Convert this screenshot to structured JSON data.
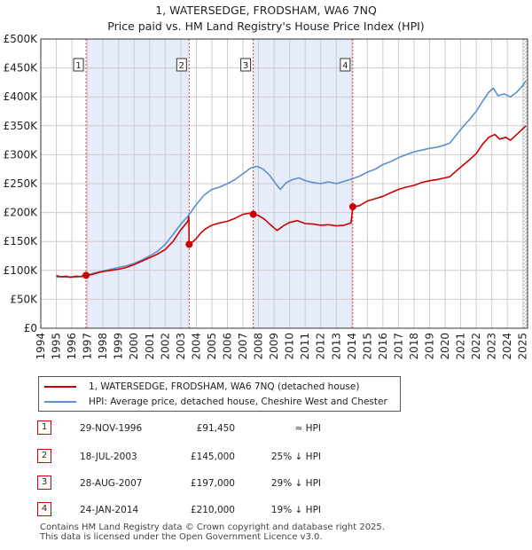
{
  "title": "1, WATERSEDGE, FRODSHAM, WA6 7NQ",
  "subtitle": "Price paid vs. HM Land Registry's House Price Index (HPI)",
  "colors": {
    "property": "#cc0000",
    "hpi": "#5b8fd0",
    "shade": "#dde6f7",
    "marker": "#cc0000"
  },
  "legend": {
    "property_label": "1, WATERSEDGE, FRODSHAM, WA6 7NQ (detached house)",
    "hpi_label": "HPI: Average price, detached house, Cheshire West and Chester"
  },
  "sales": [
    {
      "num": "1",
      "date": "29-NOV-1996",
      "price": "£91,450",
      "hpi": "≈ HPI"
    },
    {
      "num": "2",
      "date": "18-JUL-2003",
      "price": "£145,000",
      "hpi": "25% ↓ HPI"
    },
    {
      "num": "3",
      "date": "28-AUG-2007",
      "price": "£197,000",
      "hpi": "29% ↓ HPI"
    },
    {
      "num": "4",
      "date": "24-JAN-2014",
      "price": "£210,000",
      "hpi": "19% ↓ HPI"
    }
  ],
  "footer": {
    "line1": "Contains HM Land Registry data © Crown copyright and database right 2025.",
    "line2": "This data is licensed under the Open Government Licence v3.0."
  },
  "chart_data": {
    "type": "line",
    "title": "1, WATERSEDGE, FRODSHAM, WA6 7NQ",
    "subtitle": "Price paid vs. HM Land Registry's House Price Index (HPI)",
    "xlim": [
      1994,
      2025.3
    ],
    "ylim": [
      0,
      500000
    ],
    "grid": true,
    "legend_position": "below",
    "y_ticks": [
      {
        "v": 0,
        "label": "£0"
      },
      {
        "v": 50000,
        "label": "£50K"
      },
      {
        "v": 100000,
        "label": "£100K"
      },
      {
        "v": 150000,
        "label": "£150K"
      },
      {
        "v": 200000,
        "label": "£200K"
      },
      {
        "v": 250000,
        "label": "£250K"
      },
      {
        "v": 300000,
        "label": "£300K"
      },
      {
        "v": 350000,
        "label": "£350K"
      },
      {
        "v": 400000,
        "label": "£400K"
      },
      {
        "v": 450000,
        "label": "£450K"
      },
      {
        "v": 500000,
        "label": "£500K"
      }
    ],
    "x_ticks": [
      "1994",
      "1995",
      "1996",
      "1997",
      "1998",
      "1999",
      "2000",
      "2001",
      "2002",
      "2003",
      "2004",
      "2005",
      "2006",
      "2007",
      "2008",
      "2009",
      "2010",
      "2011",
      "2012",
      "2013",
      "2014",
      "2015",
      "2016",
      "2017",
      "2018",
      "2019",
      "2020",
      "2021",
      "2022",
      "2023",
      "2024",
      "2025"
    ],
    "shaded_ranges": [
      [
        1996.91,
        2003.54
      ],
      [
        2007.66,
        2014.06
      ]
    ],
    "sale_markers": [
      {
        "label": "1",
        "x": 1996.91,
        "y": 91450
      },
      {
        "label": "2",
        "x": 2003.54,
        "y": 145000
      },
      {
        "label": "3",
        "x": 2007.66,
        "y": 197000
      },
      {
        "label": "4",
        "x": 2014.06,
        "y": 210000
      }
    ],
    "series": [
      {
        "name": "1, WATERSEDGE, FRODSHAM, WA6 7NQ (detached house)",
        "color": "#cc0000",
        "points": [
          [
            1995.0,
            91000
          ],
          [
            1995.3,
            89000
          ],
          [
            1995.6,
            90000
          ],
          [
            1995.9,
            88000
          ],
          [
            1996.3,
            90000
          ],
          [
            1996.6,
            89000
          ],
          [
            1996.91,
            91450
          ],
          [
            1997.3,
            93000
          ],
          [
            1997.7,
            96000
          ],
          [
            1998.0,
            98000
          ],
          [
            1998.5,
            100000
          ],
          [
            1999.0,
            102000
          ],
          [
            1999.5,
            105000
          ],
          [
            2000.0,
            110000
          ],
          [
            2000.5,
            116000
          ],
          [
            2001.0,
            122000
          ],
          [
            2001.5,
            128000
          ],
          [
            2002.0,
            136000
          ],
          [
            2002.5,
            150000
          ],
          [
            2003.0,
            170000
          ],
          [
            2003.45,
            185000
          ],
          [
            2003.52,
            193000
          ],
          [
            2003.54,
            145000
          ],
          [
            2003.8,
            150000
          ],
          [
            2004.0,
            155000
          ],
          [
            2004.3,
            165000
          ],
          [
            2004.6,
            172000
          ],
          [
            2005.0,
            178000
          ],
          [
            2005.5,
            182000
          ],
          [
            2006.0,
            185000
          ],
          [
            2006.5,
            190000
          ],
          [
            2007.0,
            197000
          ],
          [
            2007.4,
            199000
          ],
          [
            2007.66,
            197000
          ],
          [
            2008.0,
            195000
          ],
          [
            2008.4,
            188000
          ],
          [
            2008.8,
            178000
          ],
          [
            2009.2,
            169000
          ],
          [
            2009.6,
            177000
          ],
          [
            2010.0,
            183000
          ],
          [
            2010.5,
            186000
          ],
          [
            2011.0,
            181000
          ],
          [
            2011.5,
            180000
          ],
          [
            2012.0,
            178000
          ],
          [
            2012.5,
            179000
          ],
          [
            2013.0,
            177000
          ],
          [
            2013.5,
            178000
          ],
          [
            2013.95,
            182000
          ],
          [
            2014.06,
            210000
          ],
          [
            2014.5,
            212000
          ],
          [
            2015.0,
            220000
          ],
          [
            2015.5,
            224000
          ],
          [
            2016.0,
            228000
          ],
          [
            2016.5,
            234000
          ],
          [
            2017.0,
            240000
          ],
          [
            2017.5,
            244000
          ],
          [
            2018.0,
            247000
          ],
          [
            2018.5,
            252000
          ],
          [
            2019.0,
            255000
          ],
          [
            2019.5,
            257000
          ],
          [
            2020.0,
            260000
          ],
          [
            2020.3,
            262000
          ],
          [
            2020.8,
            274000
          ],
          [
            2021.2,
            283000
          ],
          [
            2021.6,
            292000
          ],
          [
            2022.0,
            302000
          ],
          [
            2022.4,
            318000
          ],
          [
            2022.8,
            330000
          ],
          [
            2023.2,
            335000
          ],
          [
            2023.5,
            327000
          ],
          [
            2023.9,
            330000
          ],
          [
            2024.2,
            325000
          ],
          [
            2024.6,
            335000
          ],
          [
            2025.0,
            345000
          ],
          [
            2025.2,
            350000
          ]
        ]
      },
      {
        "name": "HPI: Average price, detached house, Cheshire West and Chester",
        "color": "#5b8fd0",
        "points": [
          [
            1995.0,
            88000
          ],
          [
            1995.3,
            89000
          ],
          [
            1995.6,
            88000
          ],
          [
            1995.9,
            89000
          ],
          [
            1996.3,
            88000
          ],
          [
            1996.6,
            90000
          ],
          [
            1997.0,
            92000
          ],
          [
            1997.5,
            96000
          ],
          [
            1998.0,
            99000
          ],
          [
            1998.5,
            102000
          ],
          [
            1999.0,
            105000
          ],
          [
            1999.5,
            108000
          ],
          [
            2000.0,
            112000
          ],
          [
            2000.5,
            118000
          ],
          [
            2001.0,
            125000
          ],
          [
            2001.5,
            133000
          ],
          [
            2002.0,
            145000
          ],
          [
            2002.5,
            162000
          ],
          [
            2003.0,
            180000
          ],
          [
            2003.5,
            195000
          ],
          [
            2004.0,
            214000
          ],
          [
            2004.5,
            230000
          ],
          [
            2005.0,
            240000
          ],
          [
            2005.5,
            244000
          ],
          [
            2006.0,
            250000
          ],
          [
            2006.5,
            257000
          ],
          [
            2007.0,
            267000
          ],
          [
            2007.5,
            277000
          ],
          [
            2007.9,
            280000
          ],
          [
            2008.3,
            275000
          ],
          [
            2008.7,
            265000
          ],
          [
            2009.1,
            250000
          ],
          [
            2009.4,
            240000
          ],
          [
            2009.8,
            252000
          ],
          [
            2010.2,
            257000
          ],
          [
            2010.6,
            260000
          ],
          [
            2011.0,
            255000
          ],
          [
            2011.5,
            252000
          ],
          [
            2012.0,
            250000
          ],
          [
            2012.5,
            253000
          ],
          [
            2013.0,
            250000
          ],
          [
            2013.5,
            254000
          ],
          [
            2014.0,
            258000
          ],
          [
            2014.5,
            263000
          ],
          [
            2015.0,
            270000
          ],
          [
            2015.5,
            275000
          ],
          [
            2016.0,
            283000
          ],
          [
            2016.5,
            288000
          ],
          [
            2017.0,
            295000
          ],
          [
            2017.5,
            300000
          ],
          [
            2018.0,
            305000
          ],
          [
            2018.5,
            308000
          ],
          [
            2019.0,
            311000
          ],
          [
            2019.5,
            313000
          ],
          [
            2020.0,
            317000
          ],
          [
            2020.3,
            320000
          ],
          [
            2020.8,
            337000
          ],
          [
            2021.2,
            350000
          ],
          [
            2021.6,
            362000
          ],
          [
            2022.0,
            375000
          ],
          [
            2022.4,
            392000
          ],
          [
            2022.8,
            408000
          ],
          [
            2023.1,
            415000
          ],
          [
            2023.4,
            402000
          ],
          [
            2023.8,
            405000
          ],
          [
            2024.2,
            400000
          ],
          [
            2024.6,
            408000
          ],
          [
            2025.0,
            420000
          ],
          [
            2025.2,
            428000
          ]
        ]
      }
    ]
  }
}
